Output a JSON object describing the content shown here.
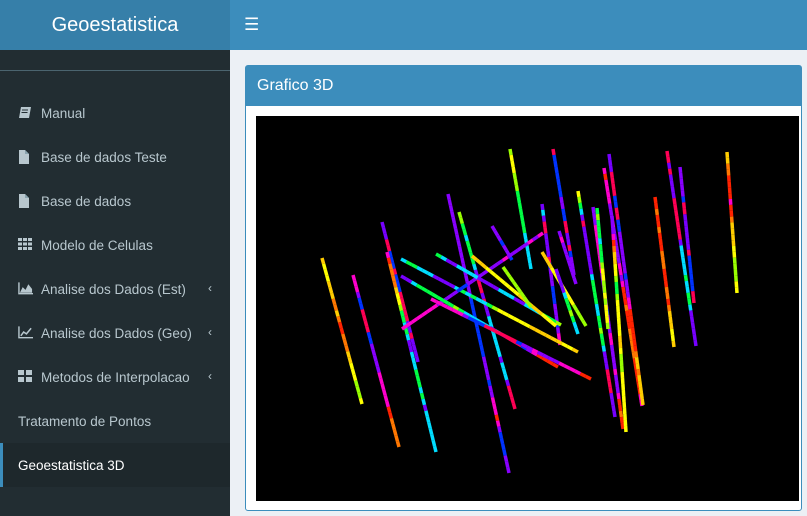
{
  "app": {
    "title": "Geoestatistica"
  },
  "navbar": {
    "toggle_icon": "hamburger-icon"
  },
  "sidebar": {
    "items": [
      {
        "label": "Manual",
        "icon": "book-icon",
        "has_caret": false
      },
      {
        "label": "Base de dados Teste",
        "icon": "file-icon",
        "has_caret": false
      },
      {
        "label": "Base de dados",
        "icon": "file-icon",
        "has_caret": false
      },
      {
        "label": "Modelo de Celulas",
        "icon": "grid-icon",
        "has_caret": false
      },
      {
        "label": "Analise dos Dados (Est)",
        "icon": "area-chart-icon",
        "has_caret": true
      },
      {
        "label": "Analise dos Dados (Geo)",
        "icon": "line-chart-icon",
        "has_caret": true
      },
      {
        "label": "Metodos de Interpolacao",
        "icon": "th-large-icon",
        "has_caret": true
      },
      {
        "label": "Tratamento de Pontos",
        "icon": "",
        "has_caret": false
      },
      {
        "label": "Geoestatistica 3D",
        "icon": "",
        "has_caret": false,
        "active": true
      }
    ]
  },
  "main": {
    "box_title": "Grafico 3D",
    "plot_background": "#000000"
  }
}
